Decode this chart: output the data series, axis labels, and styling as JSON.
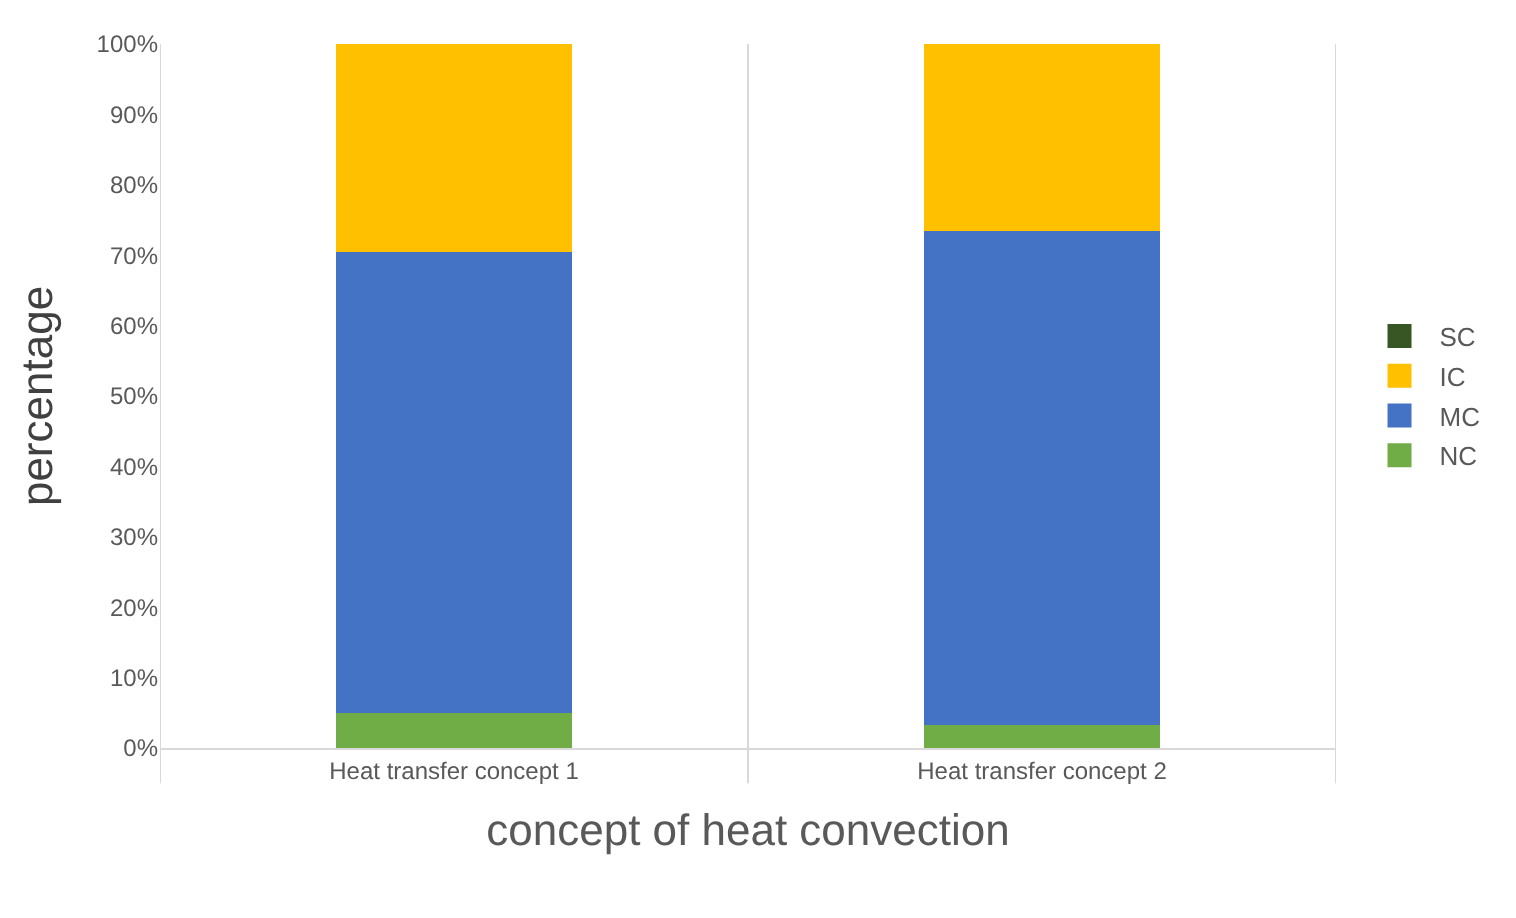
{
  "chart_data": {
    "type": "bar",
    "stacked": true,
    "xlabel": "concept of heat convection",
    "ylabel": "percentage",
    "categories": [
      "Heat transfer concept 1",
      "Heat transfer concept 2"
    ],
    "series": [
      {
        "name": "NC",
        "color": "#70ad47",
        "values": [
          5.0,
          3.3
        ]
      },
      {
        "name": "MC",
        "color": "#4472c4",
        "values": [
          65.4,
          70.2
        ]
      },
      {
        "name": "IC",
        "color": "#ffc000",
        "values": [
          29.6,
          26.5
        ]
      },
      {
        "name": "SC",
        "color": "#375623",
        "values": [
          0,
          0
        ]
      }
    ],
    "ylim": [
      0,
      100
    ],
    "yticks": [
      {
        "value": 0,
        "label": "0%"
      },
      {
        "value": 10,
        "label": "10%"
      },
      {
        "value": 20,
        "label": "20%"
      },
      {
        "value": 30,
        "label": "30%"
      },
      {
        "value": 40,
        "label": "40%"
      },
      {
        "value": 50,
        "label": "50%"
      },
      {
        "value": 60,
        "label": "60%"
      },
      {
        "value": 70,
        "label": "70%"
      },
      {
        "value": 80,
        "label": "80%"
      },
      {
        "value": 90,
        "label": "90%"
      },
      {
        "value": 100,
        "label": "100%"
      }
    ],
    "grid": "x",
    "legend": "right"
  }
}
